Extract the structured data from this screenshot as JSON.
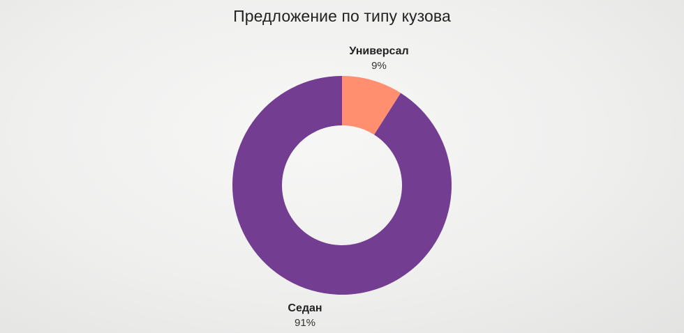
{
  "chart_data": {
    "type": "pie",
    "title": "Предложение по типу кузова",
    "style": "donut",
    "slices": [
      {
        "label": "Универсал",
        "value": 9,
        "value_label": "9%",
        "color": "#FF8F6E"
      },
      {
        "label": "Седан",
        "value": 91,
        "value_label": "91%",
        "color": "#733D91"
      }
    ]
  }
}
